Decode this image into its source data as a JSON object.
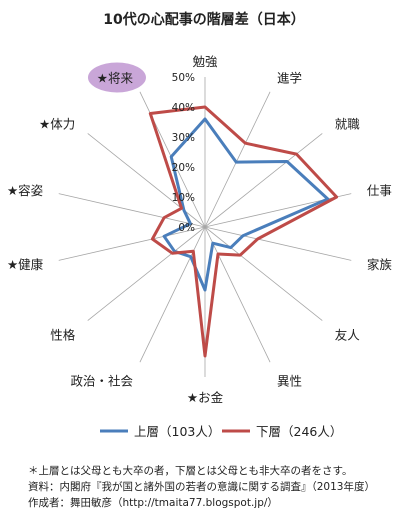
{
  "chart_data": {
    "type": "radar",
    "title": "10代の心配事の階層差（日本）",
    "categories": [
      "勉強",
      "進学",
      "就職",
      "仕事",
      "家族",
      "友人",
      "異性",
      "★お金",
      "政治・社会",
      "性格",
      "★健康",
      "★容姿",
      "★体力",
      "★将来"
    ],
    "highlighted_category": "★将来",
    "rlim": [
      0,
      50
    ],
    "ticks": [
      "0%",
      "10%",
      "20%",
      "30%",
      "40%",
      "50%"
    ],
    "series": [
      {
        "name": "上層（103人）",
        "color": "#4a7ebb",
        "values": [
          36,
          24,
          35,
          42,
          13,
          11,
          6,
          21,
          11,
          13,
          14,
          5,
          9,
          26
        ]
      },
      {
        "name": "下層（246人）",
        "color": "#be4b48",
        "values": [
          40,
          31,
          39,
          45,
          18,
          15,
          10,
          43,
          9,
          14,
          18,
          14,
          10,
          42
        ]
      }
    ],
    "legend_position": "bottom"
  },
  "notes": [
    "＊上層とは父母とも大卒の者，下層とは父母とも非大卒の者をさす。",
    "資料：内閣府『我が国と諸外国の若者の意識に関する調査』（2013年度）",
    "作成者：舞田敏彦（http://tmaita77.blogspot.jp/）"
  ],
  "colors": {
    "axis": "#a6a6a6",
    "highlight": "#c9a6d8"
  }
}
